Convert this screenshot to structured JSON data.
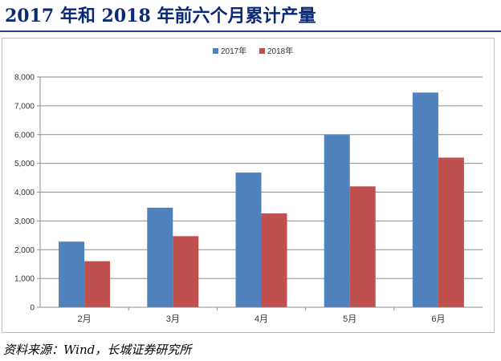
{
  "header": {
    "title": "2017 年和 2018 年前六个月累计产量"
  },
  "footer": {
    "source": "资料来源：Wind，长城证券研究所"
  },
  "colors": {
    "series_2017": "#4f81bd",
    "series_2018": "#c0504d",
    "title": "#0b2a73"
  },
  "chart_data": {
    "type": "bar",
    "title": "",
    "xlabel": "",
    "ylabel": "",
    "categories": [
      "2月",
      "3月",
      "4月",
      "5月",
      "6月"
    ],
    "series": [
      {
        "name": "2017年",
        "values": [
          2280,
          3460,
          4680,
          5990,
          7460
        ]
      },
      {
        "name": "2018年",
        "values": [
          1600,
          2470,
          3260,
          4200,
          5200
        ]
      }
    ],
    "ylim": [
      0,
      8000
    ],
    "yticks": [
      "0",
      "1,000",
      "2,000",
      "3,000",
      "4,000",
      "5,000",
      "6,000",
      "7,000",
      "8,000"
    ],
    "grid": true,
    "legend": "top-center"
  }
}
